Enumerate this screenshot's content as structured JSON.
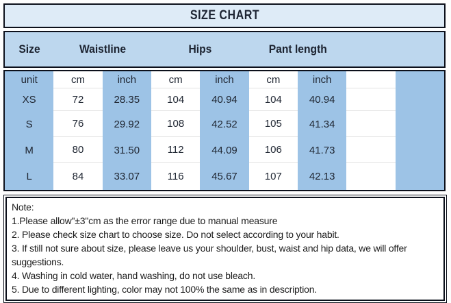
{
  "title": "SIZE CHART",
  "header": {
    "size": "Size",
    "waistline": "Waistline",
    "hips": "Hips",
    "pant_length": "Pant length"
  },
  "unit_row": [
    "unit",
    "cm",
    "inch",
    "cm",
    "inch",
    "cm",
    "inch"
  ],
  "rows": [
    {
      "size": "XS",
      "values": [
        "72",
        "28.35",
        "104",
        "40.94",
        "104",
        "40.94"
      ]
    },
    {
      "size": "S",
      "values": [
        "76",
        "29.92",
        "108",
        "42.52",
        "105",
        "41.34"
      ]
    },
    {
      "size": "M",
      "values": [
        "80",
        "31.50",
        "112",
        "44.09",
        "106",
        "41.73"
      ]
    },
    {
      "size": "L",
      "values": [
        "84",
        "33.07",
        "116",
        "45.67",
        "107",
        "42.13"
      ]
    }
  ],
  "notes": {
    "heading": "Note:",
    "lines": [
      "1.Please allow\"±3\"cm as the error range due to manual measure",
      "2. Please check size chart to choose size. Do not select according to your habit.",
      "3. If still not sure about size, please leave us your shoulder, bust, waist and hip data, we will offer suggestions.",
      "4. Washing in cold water, hand washing, do not use bleach.",
      "5. Due to different lighting, color may not 100% the same as in description."
    ]
  },
  "colors": {
    "title_bg": "#deebf7",
    "header_bg": "#bdd7ee",
    "blue_cell": "#9dc3e6",
    "white_cell": "#ffffff",
    "border": "#0c101b",
    "gridline": "#e2e2e2"
  },
  "chart_data": {
    "type": "table",
    "title": "SIZE CHART",
    "column_groups": [
      "Size",
      "Waistline",
      "Hips",
      "Pant length"
    ],
    "columns": [
      "unit",
      "Waistline cm",
      "Waistline inch",
      "Hips cm",
      "Hips inch",
      "Pant length cm",
      "Pant length inch"
    ],
    "rows": [
      [
        "XS",
        72,
        28.35,
        104,
        40.94,
        104,
        40.94
      ],
      [
        "S",
        76,
        29.92,
        108,
        42.52,
        105,
        41.34
      ],
      [
        "M",
        80,
        31.5,
        112,
        44.09,
        106,
        41.73
      ],
      [
        "L",
        84,
        33.07,
        116,
        45.67,
        107,
        42.13
      ]
    ],
    "notes": "Manual-measure tolerance ±3cm; wash cold by hand; no bleach; color may differ from description."
  }
}
